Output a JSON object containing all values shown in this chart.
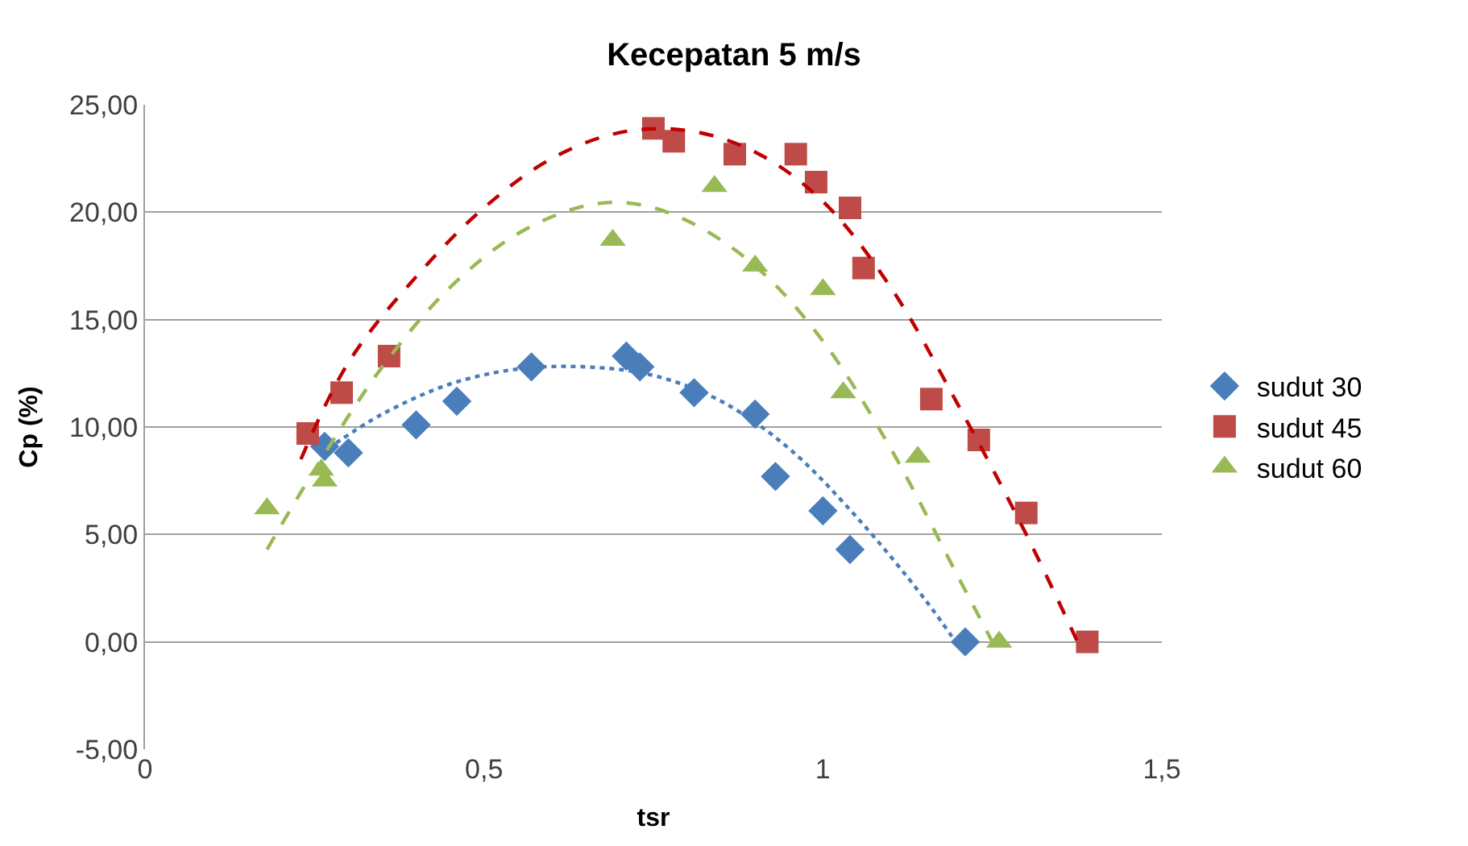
{
  "chart_data": {
    "type": "scatter",
    "title": "Kecepatan 5 m/s",
    "xlabel": "tsr",
    "ylabel": "Cp (%)",
    "xlim": [
      0,
      1.5
    ],
    "xticks": [
      0,
      {
        "value": 0.5,
        "label": "0,5"
      },
      1,
      {
        "value": 1.5,
        "label": "1,5"
      }
    ],
    "ylim": [
      -5,
      25
    ],
    "yticks": [
      {
        "value": -5,
        "label": "-5,00"
      },
      {
        "value": 0,
        "label": "0,00"
      },
      {
        "value": 5,
        "label": "5,00"
      },
      {
        "value": 10,
        "label": "10,00"
      },
      {
        "value": 15,
        "label": "15,00"
      },
      {
        "value": 20,
        "label": "20,00"
      },
      {
        "value": 25,
        "label": "25,00"
      }
    ],
    "grid": "y",
    "legend": "right",
    "series": [
      {
        "name": "sudut 30",
        "color": "#4a7ebb",
        "marker": "diamond",
        "x": [
          0.265,
          0.3,
          0.4,
          0.46,
          0.57,
          0.71,
          0.73,
          0.81,
          0.9,
          0.93,
          1.0,
          1.04,
          1.21
        ],
        "values": [
          9.1,
          8.8,
          10.1,
          11.2,
          12.8,
          13.3,
          12.8,
          11.6,
          10.6,
          7.7,
          6.1,
          4.3,
          0
        ]
      },
      {
        "name": "sudut 45",
        "color": "#be4b48",
        "marker": "square",
        "x": [
          0.24,
          0.29,
          0.36,
          0.75,
          0.78,
          0.87,
          0.96,
          0.99,
          1.04,
          1.06,
          1.16,
          1.23,
          1.3,
          1.39
        ],
        "values": [
          9.7,
          11.6,
          13.3,
          23.9,
          23.3,
          22.7,
          22.7,
          21.4,
          20.2,
          17.4,
          11.3,
          9.4,
          6.0,
          0
        ]
      },
      {
        "name": "sudut 60",
        "color": "#98b954",
        "marker": "triangle",
        "x": [
          0.18,
          0.26,
          0.265,
          0.69,
          0.84,
          0.9,
          1.0,
          1.03,
          1.14,
          1.26
        ],
        "values": [
          6.2,
          8.0,
          7.5,
          18.7,
          21.2,
          17.5,
          16.4,
          11.6,
          8.6,
          0
        ]
      },
      {
        "type": "line",
        "color": "#4a7ebb",
        "line_style": "dotted",
        "x": [
          0.27,
          0.35,
          0.45,
          0.55,
          0.65,
          0.75,
          0.85,
          0.95,
          1.05,
          1.15,
          1.2
        ],
        "values": [
          9.0,
          10.6,
          12.0,
          12.7,
          12.8,
          12.4,
          11.2,
          9.0,
          5.8,
          2.0,
          -0.2
        ]
      },
      {
        "type": "line",
        "color": "#c00000",
        "line_style": "dashed",
        "x": [
          0.23,
          0.3,
          0.4,
          0.5,
          0.6,
          0.7,
          0.8,
          0.9,
          1.0,
          1.1,
          1.2,
          1.3,
          1.38
        ],
        "values": [
          8.5,
          13.0,
          17.0,
          20.2,
          22.5,
          23.7,
          23.8,
          22.8,
          20.5,
          16.5,
          11.0,
          5.0,
          -0.3
        ]
      },
      {
        "type": "line",
        "color": "#98b954",
        "line_style": "dashed",
        "x": [
          0.18,
          0.25,
          0.35,
          0.45,
          0.55,
          0.65,
          0.72,
          0.8,
          0.9,
          1.0,
          1.1,
          1.2,
          1.25
        ],
        "values": [
          4.3,
          8.0,
          12.8,
          16.5,
          19.0,
          20.3,
          20.4,
          19.6,
          17.5,
          14.0,
          9.0,
          3.0,
          0
        ]
      }
    ]
  }
}
